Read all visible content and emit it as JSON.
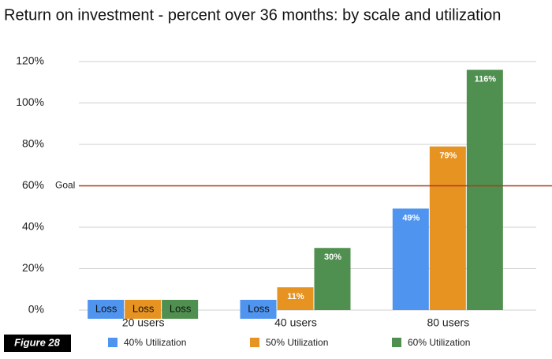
{
  "chart_data": {
    "type": "bar",
    "title": "Return on investment - percent over 36 months: by scale and utilization",
    "categories": [
      "20 users",
      "40 users",
      "80 users"
    ],
    "series": [
      {
        "name": "40% Utilization",
        "color": "#4f94ef",
        "values": [
          null,
          null,
          49
        ],
        "value_labels": [
          "Loss",
          "Loss",
          "49%"
        ]
      },
      {
        "name": "50% Utilization",
        "color": "#e69322",
        "values": [
          null,
          11,
          79
        ],
        "value_labels": [
          "Loss",
          "11%",
          "79%"
        ]
      },
      {
        "name": "60% Utilization",
        "color": "#4f8f4f",
        "values": [
          null,
          30,
          116
        ],
        "value_labels": [
          "Loss",
          "30%",
          "116%"
        ]
      }
    ],
    "ylim": [
      0,
      120
    ],
    "yticks": [
      {
        "value": 0,
        "label": "0%"
      },
      {
        "value": 20,
        "label": "20%"
      },
      {
        "value": 40,
        "label": "40%"
      },
      {
        "value": 60,
        "label": "60%"
      },
      {
        "value": 80,
        "label": "80%"
      },
      {
        "value": 100,
        "label": "100%"
      },
      {
        "value": 120,
        "label": "120%"
      }
    ],
    "grid": true,
    "goal": {
      "value": 60,
      "label": "Goal",
      "color": "#b03a1e"
    },
    "figure_label": "Figure 28"
  }
}
